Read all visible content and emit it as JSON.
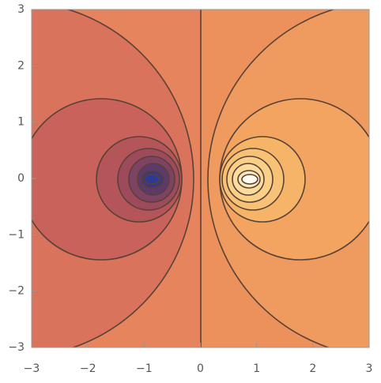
{
  "chart_data": {
    "type": "contour",
    "xlim": [
      -3,
      3
    ],
    "ylim": [
      -3,
      3
    ],
    "xticks": [
      {
        "value": -3,
        "label": "−3"
      },
      {
        "value": -2,
        "label": "−2"
      },
      {
        "value": -1,
        "label": "−1"
      },
      0,
      1,
      2,
      3
    ],
    "yticks": [
      {
        "value": -3,
        "label": "−3"
      },
      {
        "value": -2,
        "label": "−2"
      },
      {
        "value": -1,
        "label": "−1"
      },
      0,
      1,
      2,
      3
    ]
  }
}
